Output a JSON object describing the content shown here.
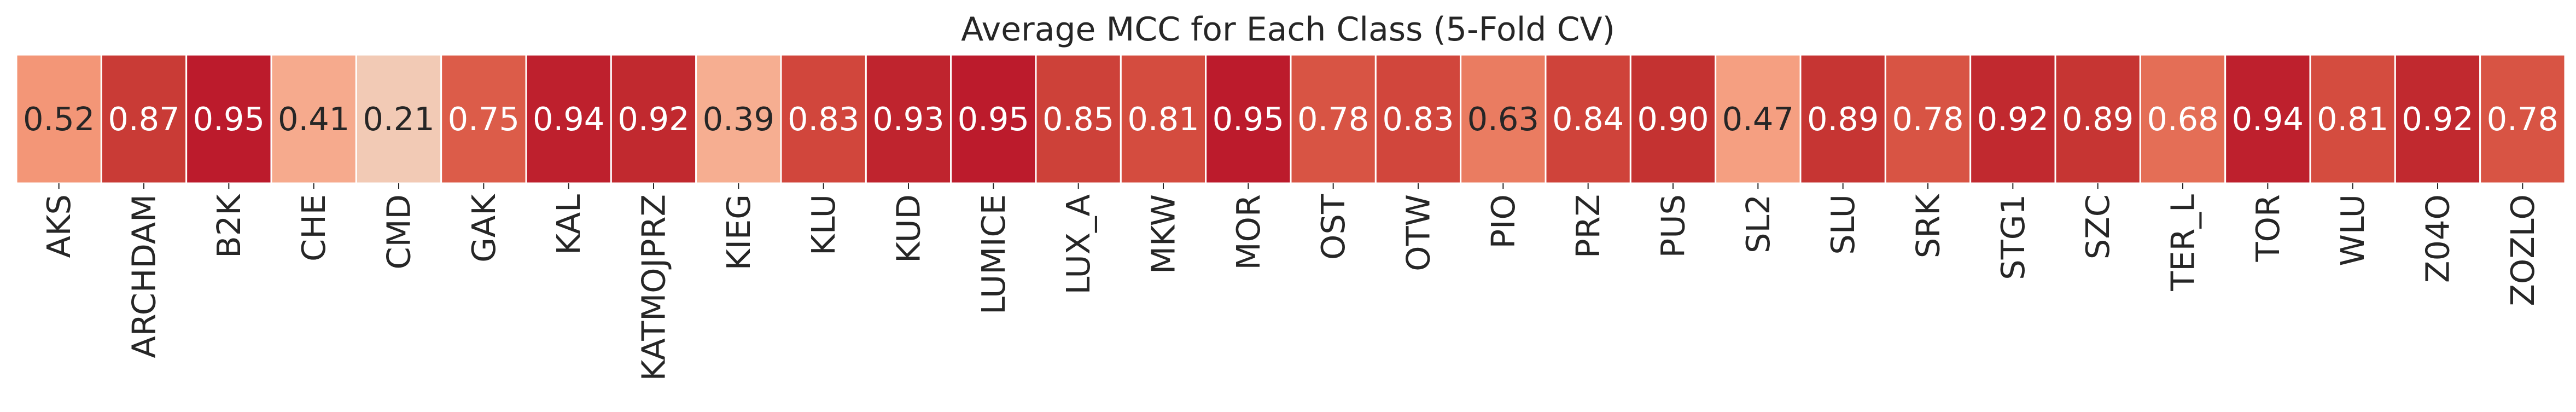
{
  "chart_data": {
    "type": "heatmap",
    "title": "Average MCC for Each Class (5-Fold CV)",
    "xlabel": "",
    "ylabel": "",
    "colormap": "coolwarm",
    "color_range": [
      0,
      1
    ],
    "grid": false,
    "legend": "none",
    "categories": [
      "AKS",
      "ARCHDAM",
      "B2K",
      "CHE",
      "CMD",
      "GAK",
      "KAL",
      "KATMOJPRZ",
      "KIEG",
      "KLU",
      "KUD",
      "LUMICE",
      "LUX_A",
      "MKW",
      "MOR",
      "OST",
      "OTW",
      "PIO",
      "PRZ",
      "PUS",
      "SL2",
      "SLU",
      "SRK",
      "STG1",
      "SZC",
      "TER_L",
      "TOR",
      "WLU",
      "Z04O",
      "ZOZLO"
    ],
    "values": [
      0.52,
      0.87,
      0.95,
      0.41,
      0.21,
      0.75,
      0.94,
      0.92,
      0.39,
      0.83,
      0.93,
      0.95,
      0.85,
      0.81,
      0.95,
      0.78,
      0.83,
      0.63,
      0.84,
      0.9,
      0.47,
      0.89,
      0.78,
      0.92,
      0.89,
      0.68,
      0.94,
      0.81,
      0.92,
      0.78
    ],
    "value_labels": [
      "0.52",
      "0.87",
      "0.95",
      "0.41",
      "0.21",
      "0.75",
      "0.94",
      "0.92",
      "0.39",
      "0.83",
      "0.93",
      "0.95",
      "0.85",
      "0.81",
      "0.95",
      "0.78",
      "0.83",
      "0.63",
      "0.84",
      "0.90",
      "0.47",
      "0.89",
      "0.78",
      "0.92",
      "0.89",
      "0.68",
      "0.94",
      "0.81",
      "0.92",
      "0.78"
    ]
  }
}
